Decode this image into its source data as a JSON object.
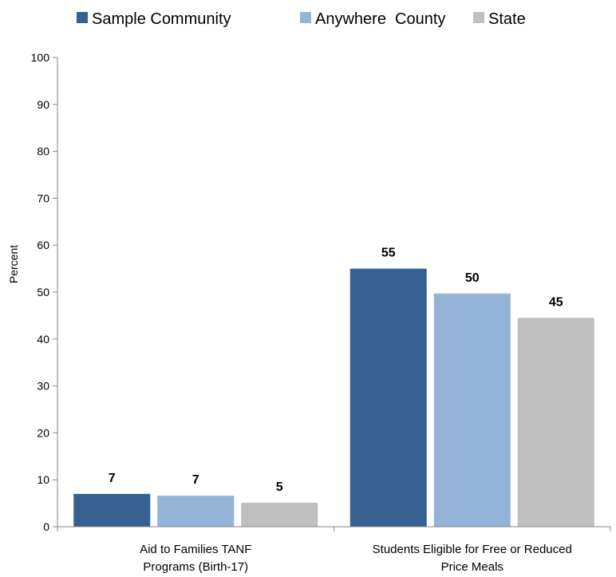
{
  "chart_data": {
    "type": "bar",
    "categories": [
      [
        "Aid to Families TANF",
        "Programs (Birth-17)"
      ],
      [
        "Students Eligible for Free or Reduced",
        "Price Meals"
      ]
    ],
    "series": [
      {
        "name": "Sample Community",
        "color": "#376092",
        "values": [
          7,
          55
        ]
      },
      {
        "name": "Anywhere  County",
        "color": "#95B3D7",
        "values": [
          6.6,
          49.7
        ]
      },
      {
        "name": "State",
        "color": "#BFBFBF",
        "values": [
          5.1,
          44.5
        ]
      }
    ],
    "data_labels": [
      [
        "7",
        "55"
      ],
      [
        "7",
        "50"
      ],
      [
        "5",
        "45"
      ]
    ],
    "ylabel": "Percent",
    "ylim": [
      0,
      100
    ],
    "yticks": [
      0,
      10,
      20,
      30,
      40,
      50,
      60,
      70,
      80,
      90,
      100
    ],
    "grid": false,
    "legend_position": "top"
  }
}
